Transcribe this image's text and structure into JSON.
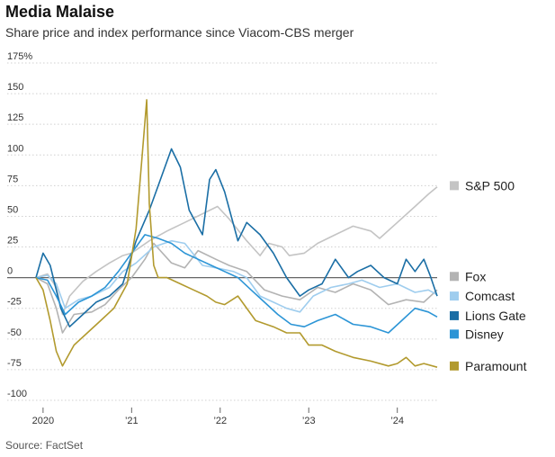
{
  "title": "Media Malaise",
  "subtitle": "Share price and index performance since Viacom-CBS merger",
  "source": "Source: FactSet",
  "chart_data": {
    "type": "line",
    "ylim": [
      -100,
      175
    ],
    "y_ticks": [
      -100,
      -75,
      -50,
      -25,
      0,
      25,
      50,
      75,
      100,
      125,
      150,
      175
    ],
    "y_tick_labels": [
      "-100",
      "-75",
      "-50",
      "-25",
      "0",
      "25",
      "50",
      "75",
      "100",
      "125",
      "150",
      "175%"
    ],
    "x_tick_labels": [
      "2020",
      "’21",
      "’22",
      "’23",
      "’24"
    ],
    "x_tick_values": [
      2020.0,
      2021.0,
      2022.0,
      2023.0,
      2024.0
    ],
    "xlim": [
      2019.92,
      2024.45
    ],
    "series": [
      {
        "name": "S&P 500",
        "color": "#c4c4c4",
        "x": [
          2019.92,
          2020.05,
          2020.15,
          2020.22,
          2020.3,
          2020.45,
          2020.6,
          2020.75,
          2020.9,
          2021.0,
          2021.2,
          2021.4,
          2021.6,
          2021.8,
          2021.97,
          2022.1,
          2022.3,
          2022.45,
          2022.55,
          2022.7,
          2022.78,
          2022.95,
          2023.1,
          2023.3,
          2023.5,
          2023.7,
          2023.8,
          2024.0,
          2024.2,
          2024.35,
          2024.45
        ],
        "values": [
          0,
          3,
          -8,
          -30,
          -15,
          -3,
          5,
          12,
          18,
          20,
          30,
          38,
          45,
          52,
          58,
          48,
          30,
          18,
          28,
          25,
          18,
          20,
          28,
          35,
          42,
          38,
          32,
          45,
          58,
          68,
          74
        ]
      },
      {
        "name": "Fox",
        "color": "#b3b3b3",
        "x": [
          2019.92,
          2020.05,
          2020.15,
          2020.22,
          2020.35,
          2020.55,
          2020.7,
          2020.85,
          2021.0,
          2021.15,
          2021.25,
          2021.45,
          2021.6,
          2021.75,
          2021.95,
          2022.1,
          2022.3,
          2022.5,
          2022.7,
          2022.9,
          2023.1,
          2023.3,
          2023.5,
          2023.7,
          2023.9,
          2024.1,
          2024.3,
          2024.45
        ],
        "values": [
          0,
          -5,
          -25,
          -45,
          -30,
          -28,
          -22,
          -10,
          0,
          15,
          28,
          12,
          8,
          22,
          15,
          10,
          5,
          -10,
          -15,
          -18,
          -8,
          -12,
          -5,
          -10,
          -22,
          -18,
          -20,
          -10
        ]
      },
      {
        "name": "Comcast",
        "color": "#9fcdee",
        "x": [
          2019.92,
          2020.05,
          2020.15,
          2020.25,
          2020.4,
          2020.55,
          2020.75,
          2020.9,
          2021.05,
          2021.25,
          2021.45,
          2021.6,
          2021.8,
          2021.95,
          2022.15,
          2022.3,
          2022.45,
          2022.6,
          2022.75,
          2022.9,
          2023.05,
          2023.25,
          2023.45,
          2023.6,
          2023.8,
          2024.0,
          2024.2,
          2024.35,
          2024.45
        ],
        "values": [
          0,
          2,
          -5,
          -25,
          -18,
          -15,
          -8,
          5,
          12,
          25,
          30,
          28,
          10,
          8,
          5,
          0,
          -15,
          -20,
          -25,
          -28,
          -15,
          -8,
          -5,
          -2,
          -8,
          -5,
          -12,
          -10,
          -14
        ]
      },
      {
        "name": "Lions Gate",
        "color": "#1a6ea5",
        "x": [
          2019.92,
          2020.0,
          2020.08,
          2020.2,
          2020.3,
          2020.45,
          2020.6,
          2020.75,
          2020.9,
          2021.05,
          2021.2,
          2021.3,
          2021.45,
          2021.55,
          2021.65,
          2021.8,
          2021.88,
          2021.95,
          2022.05,
          2022.2,
          2022.3,
          2022.45,
          2022.6,
          2022.75,
          2022.9,
          2023.0,
          2023.15,
          2023.3,
          2023.45,
          2023.55,
          2023.7,
          2023.85,
          2024.0,
          2024.1,
          2024.2,
          2024.3,
          2024.37,
          2024.45
        ],
        "values": [
          0,
          20,
          10,
          -25,
          -40,
          -30,
          -20,
          -15,
          -5,
          30,
          55,
          75,
          105,
          90,
          55,
          35,
          80,
          88,
          70,
          30,
          45,
          35,
          20,
          0,
          -15,
          -10,
          -5,
          15,
          0,
          5,
          10,
          0,
          -5,
          15,
          5,
          15,
          2,
          -15
        ]
      },
      {
        "name": "Disney",
        "color": "#2c95d6",
        "x": [
          2019.92,
          2020.05,
          2020.15,
          2020.25,
          2020.4,
          2020.55,
          2020.7,
          2020.85,
          2021.0,
          2021.15,
          2021.3,
          2021.45,
          2021.6,
          2021.75,
          2021.9,
          2022.05,
          2022.2,
          2022.35,
          2022.5,
          2022.65,
          2022.8,
          2022.95,
          2023.1,
          2023.3,
          2023.5,
          2023.7,
          2023.9,
          2024.05,
          2024.2,
          2024.35,
          2024.45
        ],
        "values": [
          0,
          -2,
          -15,
          -30,
          -20,
          -15,
          -8,
          5,
          20,
          35,
          32,
          28,
          20,
          15,
          10,
          5,
          0,
          -10,
          -20,
          -30,
          -38,
          -40,
          -35,
          -30,
          -38,
          -40,
          -45,
          -35,
          -25,
          -28,
          -32
        ]
      },
      {
        "name": "Paramount",
        "color": "#b29a2e",
        "x": [
          2019.92,
          2020.0,
          2020.08,
          2020.15,
          2020.22,
          2020.35,
          2020.5,
          2020.65,
          2020.8,
          2020.95,
          2021.05,
          2021.12,
          2021.17,
          2021.2,
          2021.25,
          2021.3,
          2021.4,
          2021.55,
          2021.7,
          2021.85,
          2021.95,
          2022.05,
          2022.2,
          2022.4,
          2022.6,
          2022.75,
          2022.9,
          2023.0,
          2023.15,
          2023.3,
          2023.5,
          2023.7,
          2023.9,
          2024.0,
          2024.1,
          2024.2,
          2024.3,
          2024.45
        ],
        "values": [
          0,
          -10,
          -35,
          -60,
          -72,
          -55,
          -45,
          -35,
          -25,
          -5,
          40,
          100,
          145,
          60,
          10,
          0,
          0,
          -5,
          -10,
          -15,
          -20,
          -22,
          -15,
          -35,
          -40,
          -45,
          -45,
          -55,
          -55,
          -60,
          -65,
          -68,
          -72,
          -70,
          -65,
          -72,
          -70,
          -73
        ]
      }
    ]
  },
  "legend": [
    {
      "label": "S&P 500",
      "color": "#c4c4c4",
      "y": 75
    },
    {
      "label": "Fox",
      "color": "#b3b3b3",
      "y": 1
    },
    {
      "label": "Comcast",
      "color": "#9fcdee",
      "y": -15
    },
    {
      "label": "Lions Gate",
      "color": "#1a6ea5",
      "y": -31
    },
    {
      "label": "Disney",
      "color": "#2c95d6",
      "y": -46
    },
    {
      "label": "Paramount",
      "color": "#b29a2e",
      "y": -72
    }
  ]
}
